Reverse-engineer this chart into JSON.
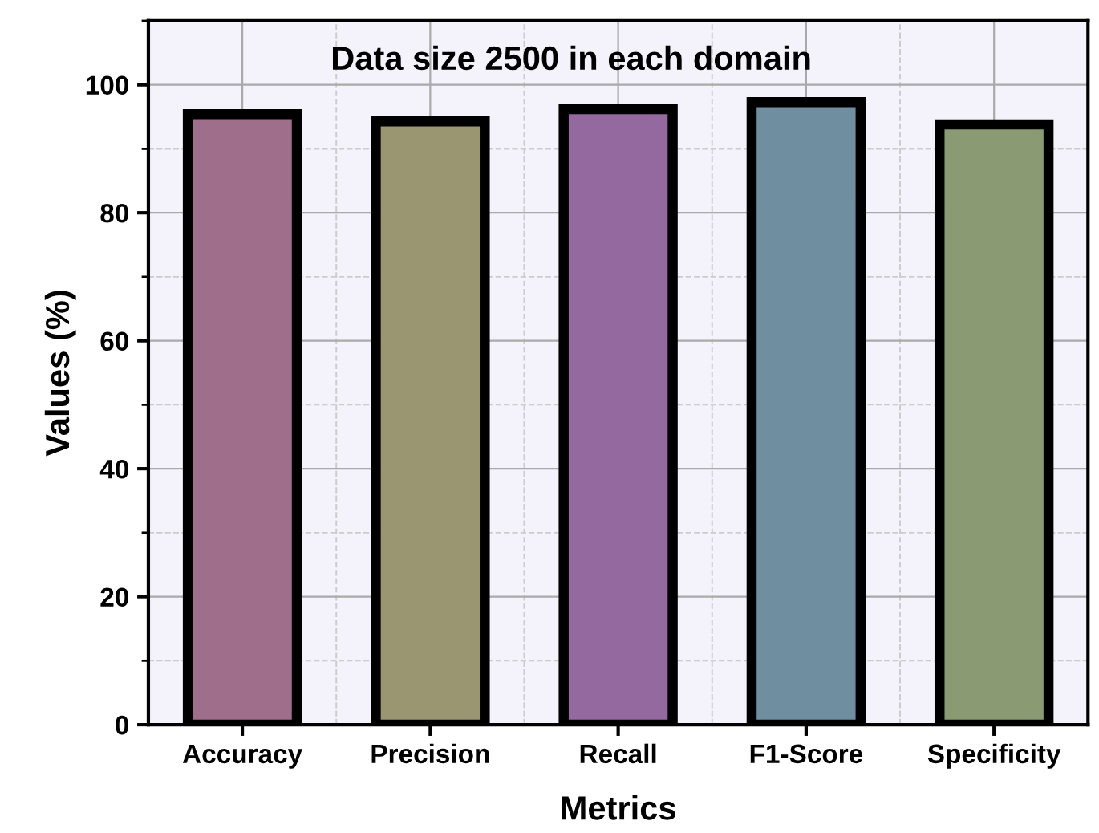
{
  "chart_data": {
    "type": "bar",
    "title": "Data size 2500 in each domain",
    "xlabel": "Metrics",
    "ylabel": "Values (%)",
    "categories": [
      "Accuracy",
      "Precision",
      "Recall",
      "F1-Score",
      "Specificity"
    ],
    "values": [
      95.4,
      94.3,
      96.2,
      97.3,
      93.8
    ],
    "colors": [
      "#9e6e8a",
      "#9a9672",
      "#9469a0",
      "#6f8ea0",
      "#8a9a72"
    ],
    "ylim": [
      0,
      110
    ],
    "yticks": [
      0,
      20,
      40,
      60,
      80,
      100
    ],
    "grid": true
  }
}
